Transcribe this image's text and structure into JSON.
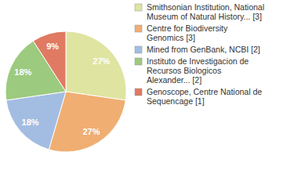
{
  "chart_data": {
    "type": "pie",
    "categories": [
      "Smithsonian Institution, National Museum of Natural History... [3]",
      "Centre for Biodiversity Genomics [3]",
      "Mined from GenBank, NCBI [2]",
      "Instituto de Investigacion de Recursos Biologicos Alexander... [2]",
      "Genoscope, Centre National de Sequencage [1]"
    ],
    "values": [
      27,
      27,
      18,
      18,
      9
    ],
    "value_labels": [
      "27%",
      "27%",
      "18%",
      "18%",
      "9%"
    ],
    "colors": [
      "#dfe4a0",
      "#f0ae72",
      "#a3bde2",
      "#9cca7e",
      "#e07a62"
    ],
    "data_labels": true,
    "legend": "right"
  }
}
